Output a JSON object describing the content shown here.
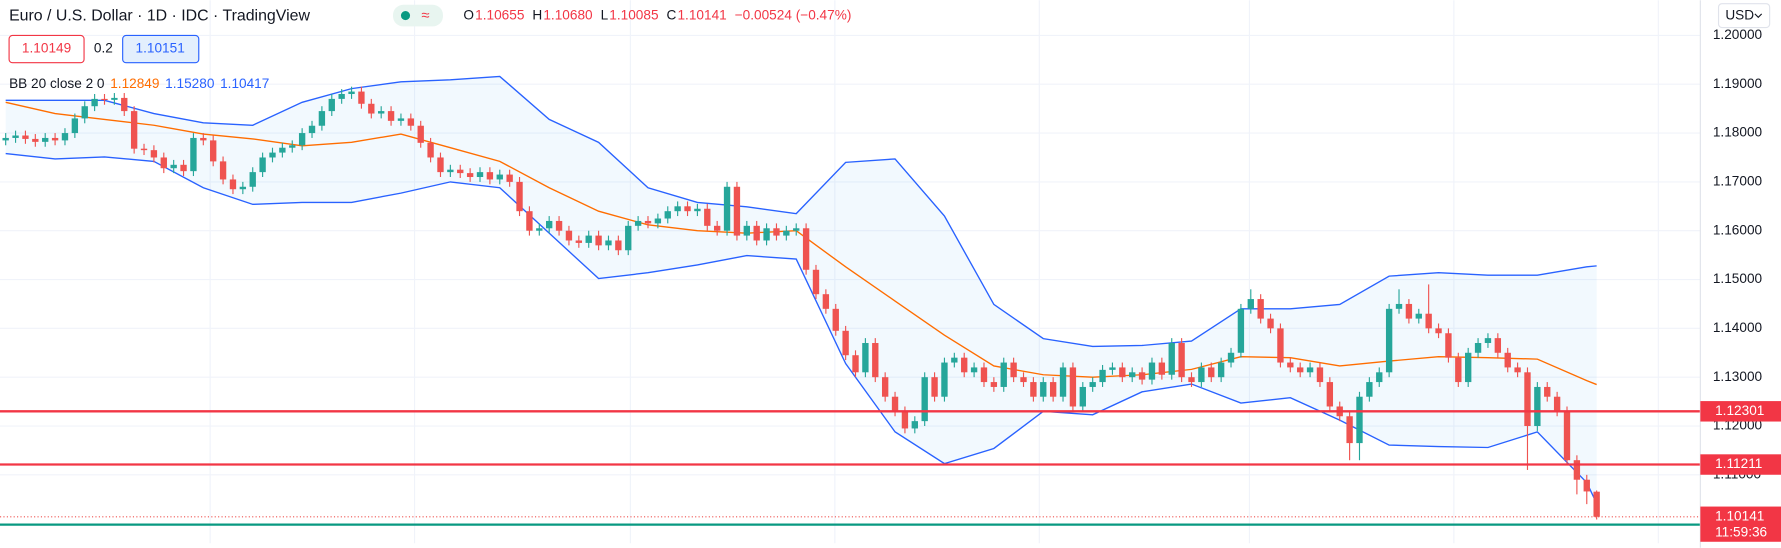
{
  "header": {
    "title": "Euro / U.S. Dollar · 1D · IDC · TradingView",
    "ohlc": [
      {
        "label": "O",
        "value": "1.10655"
      },
      {
        "label": "H",
        "value": "1.10680"
      },
      {
        "label": "L",
        "value": "1.10085"
      },
      {
        "label": "C",
        "value": "1.10141"
      }
    ],
    "change": "−0.00524 (−0.47%)",
    "currency": "USD",
    "bid": "1.10149",
    "spread": "0.2",
    "ask": "1.10151"
  },
  "indicator": {
    "name": "BB 20 close 2 0",
    "countdown": "11:59:36"
  },
  "chart_data": {
    "type": "candlestick",
    "ylim": [
      1.096,
      1.2072
    ],
    "yticks": [
      {
        "value": 1.2,
        "label": "1.20000"
      },
      {
        "value": 1.19,
        "label": "1.19000"
      },
      {
        "value": 1.18,
        "label": "1.18000"
      },
      {
        "value": 1.17,
        "label": "1.17000"
      },
      {
        "value": 1.16,
        "label": "1.16000"
      },
      {
        "value": 1.15,
        "label": "1.15000"
      },
      {
        "value": 1.14,
        "label": "1.14000"
      },
      {
        "value": 1.13,
        "label": "1.13000"
      },
      {
        "value": 1.12,
        "label": "1.12000"
      },
      {
        "value": 1.11,
        "label": "1.11000"
      }
    ],
    "grid": true,
    "up_color": "#26a69a",
    "down_color": "#ef5350",
    "open": [
      1.1785,
      1.179,
      1.1795,
      1.1788,
      1.1782,
      1.179,
      1.1785,
      1.18,
      1.183,
      1.1855,
      1.187,
      1.1868,
      1.1872,
      1.1845,
      1.1768,
      1.1765,
      1.175,
      1.1728,
      1.1735,
      1.1722,
      1.179,
      1.1785,
      1.1742,
      1.1705,
      1.1685,
      1.169,
      1.172,
      1.175,
      1.176,
      1.177,
      1.1775,
      1.18,
      1.1815,
      1.1845,
      1.187,
      1.188,
      1.1885,
      1.186,
      1.184,
      1.1845,
      1.1825,
      1.183,
      1.1815,
      1.178,
      1.175,
      1.172,
      1.1725,
      1.1718,
      1.171,
      1.172,
      1.1705,
      1.1715,
      1.17,
      1.164,
      1.16,
      1.1605,
      1.162,
      1.16,
      1.158,
      1.1575,
      1.159,
      1.157,
      1.158,
      1.156,
      1.161,
      1.162,
      1.1615,
      1.1625,
      1.164,
      1.165,
      1.164,
      1.1645,
      1.161,
      1.16,
      1.169,
      1.159,
      1.161,
      1.158,
      1.1605,
      1.159,
      1.16,
      1.1605,
      1.152,
      1.147,
      1.144,
      1.1395,
      1.1345,
      1.131,
      1.137,
      1.13,
      1.126,
      1.123,
      1.1195,
      1.121,
      1.13,
      1.126,
      1.133,
      1.134,
      1.131,
      1.132,
      1.129,
      1.128,
      1.133,
      1.13,
      1.129,
      1.126,
      1.129,
      1.126,
      1.132,
      1.124,
      1.128,
      1.129,
      1.1315,
      1.132,
      1.13,
      1.131,
      1.1295,
      1.133,
      1.1305,
      1.137,
      1.13,
      1.129,
      1.132,
      1.13,
      1.133,
      1.135,
      1.144,
      1.146,
      1.142,
      1.14,
      1.133,
      1.132,
      1.131,
      1.132,
      1.129,
      1.124,
      1.122,
      1.1165,
      1.126,
      1.129,
      1.131,
      1.144,
      1.145,
      1.142,
      1.143,
      1.14,
      1.139,
      1.134,
      1.129,
      1.135,
      1.137,
      1.138,
      1.135,
      1.132,
      1.131,
      1.12,
      1.128,
      1.126,
      1.123,
      1.113,
      1.109,
      1.10655
    ],
    "high": [
      1.18,
      1.1805,
      1.1805,
      1.1798,
      1.18,
      1.18,
      1.181,
      1.184,
      1.1865,
      1.188,
      1.188,
      1.1882,
      1.1882,
      1.1855,
      1.1778,
      1.1775,
      1.176,
      1.1745,
      1.1745,
      1.18,
      1.18,
      1.1795,
      1.1752,
      1.1715,
      1.17,
      1.173,
      1.176,
      1.177,
      1.178,
      1.1785,
      1.181,
      1.1825,
      1.1855,
      1.188,
      1.189,
      1.1895,
      1.1895,
      1.187,
      1.1855,
      1.1855,
      1.184,
      1.184,
      1.1825,
      1.179,
      1.176,
      1.1735,
      1.1735,
      1.1728,
      1.173,
      1.173,
      1.1725,
      1.1725,
      1.171,
      1.165,
      1.1615,
      1.163,
      1.163,
      1.161,
      1.159,
      1.16,
      1.16,
      1.159,
      1.159,
      1.162,
      1.163,
      1.163,
      1.1635,
      1.165,
      1.166,
      1.166,
      1.1655,
      1.1655,
      1.162,
      1.17,
      1.17,
      1.162,
      1.162,
      1.1615,
      1.1615,
      1.161,
      1.1615,
      1.1615,
      1.153,
      1.148,
      1.145,
      1.1405,
      1.1355,
      1.138,
      1.138,
      1.131,
      1.127,
      1.124,
      1.122,
      1.131,
      1.131,
      1.134,
      1.135,
      1.135,
      1.133,
      1.133,
      1.13,
      1.134,
      1.134,
      1.131,
      1.13,
      1.13,
      1.13,
      1.133,
      1.133,
      1.129,
      1.13,
      1.1325,
      1.133,
      1.133,
      1.132,
      1.132,
      1.134,
      1.134,
      1.138,
      1.138,
      1.131,
      1.133,
      1.133,
      1.134,
      1.136,
      1.145,
      1.148,
      1.147,
      1.143,
      1.141,
      1.134,
      1.133,
      1.133,
      1.133,
      1.13,
      1.125,
      1.123,
      1.127,
      1.13,
      1.132,
      1.145,
      1.148,
      1.146,
      1.144,
      1.149,
      1.141,
      1.14,
      1.135,
      1.136,
      1.138,
      1.139,
      1.139,
      1.136,
      1.133,
      1.132,
      1.129,
      1.129,
      1.127,
      1.124,
      1.114,
      1.11,
      1.1068
    ],
    "low": [
      1.1775,
      1.178,
      1.1778,
      1.1772,
      1.1772,
      1.1775,
      1.1775,
      1.179,
      1.182,
      1.1845,
      1.1858,
      1.1858,
      1.1835,
      1.1758,
      1.1755,
      1.174,
      1.1718,
      1.1718,
      1.1712,
      1.1712,
      1.1775,
      1.1732,
      1.1695,
      1.1675,
      1.1675,
      1.168,
      1.171,
      1.174,
      1.175,
      1.176,
      1.1765,
      1.179,
      1.1805,
      1.1835,
      1.186,
      1.187,
      1.185,
      1.183,
      1.183,
      1.1815,
      1.1815,
      1.1805,
      1.177,
      1.174,
      1.171,
      1.171,
      1.1708,
      1.17,
      1.17,
      1.1695,
      1.1695,
      1.169,
      1.163,
      1.159,
      1.159,
      1.1595,
      1.159,
      1.157,
      1.1565,
      1.1565,
      1.156,
      1.156,
      1.155,
      1.155,
      1.16,
      1.1605,
      1.1605,
      1.1615,
      1.163,
      1.163,
      1.163,
      1.16,
      1.159,
      1.159,
      1.158,
      1.158,
      1.157,
      1.157,
      1.158,
      1.158,
      1.159,
      1.151,
      1.146,
      1.143,
      1.1385,
      1.1335,
      1.13,
      1.13,
      1.129,
      1.125,
      1.122,
      1.1185,
      1.1185,
      1.12,
      1.125,
      1.125,
      1.132,
      1.13,
      1.13,
      1.128,
      1.127,
      1.127,
      1.129,
      1.128,
      1.125,
      1.125,
      1.125,
      1.125,
      1.123,
      1.123,
      1.127,
      1.128,
      1.1305,
      1.129,
      1.129,
      1.1285,
      1.1285,
      1.1295,
      1.1295,
      1.129,
      1.128,
      1.128,
      1.129,
      1.129,
      1.132,
      1.134,
      1.143,
      1.141,
      1.139,
      1.132,
      1.131,
      1.13,
      1.13,
      1.128,
      1.123,
      1.121,
      1.113,
      1.113,
      1.125,
      1.128,
      1.13,
      1.143,
      1.141,
      1.141,
      1.139,
      1.138,
      1.133,
      1.128,
      1.128,
      1.134,
      1.136,
      1.134,
      1.131,
      1.13,
      1.111,
      1.119,
      1.125,
      1.122,
      1.112,
      1.106,
      1.104,
      1.10085
    ],
    "close": [
      1.179,
      1.1795,
      1.1788,
      1.1782,
      1.179,
      1.1785,
      1.18,
      1.183,
      1.1855,
      1.187,
      1.1868,
      1.1872,
      1.1845,
      1.1768,
      1.1765,
      1.175,
      1.1728,
      1.1735,
      1.1722,
      1.179,
      1.1785,
      1.1742,
      1.1705,
      1.1685,
      1.169,
      1.172,
      1.175,
      1.176,
      1.177,
      1.1775,
      1.18,
      1.1815,
      1.1845,
      1.187,
      1.188,
      1.1885,
      1.186,
      1.184,
      1.1845,
      1.1825,
      1.183,
      1.1815,
      1.178,
      1.175,
      1.172,
      1.1725,
      1.1718,
      1.171,
      1.172,
      1.1705,
      1.1715,
      1.17,
      1.164,
      1.16,
      1.1605,
      1.162,
      1.16,
      1.158,
      1.1575,
      1.159,
      1.157,
      1.158,
      1.156,
      1.161,
      1.162,
      1.1615,
      1.1625,
      1.164,
      1.165,
      1.164,
      1.1645,
      1.161,
      1.16,
      1.169,
      1.159,
      1.161,
      1.158,
      1.1605,
      1.159,
      1.16,
      1.1605,
      1.152,
      1.147,
      1.144,
      1.1395,
      1.1345,
      1.131,
      1.137,
      1.13,
      1.126,
      1.123,
      1.1195,
      1.121,
      1.13,
      1.126,
      1.133,
      1.134,
      1.131,
      1.132,
      1.129,
      1.128,
      1.133,
      1.13,
      1.129,
      1.126,
      1.129,
      1.126,
      1.132,
      1.124,
      1.128,
      1.129,
      1.1315,
      1.132,
      1.13,
      1.131,
      1.1295,
      1.133,
      1.1305,
      1.137,
      1.13,
      1.129,
      1.132,
      1.13,
      1.133,
      1.135,
      1.144,
      1.146,
      1.142,
      1.14,
      1.133,
      1.132,
      1.131,
      1.132,
      1.129,
      1.124,
      1.122,
      1.1165,
      1.126,
      1.129,
      1.131,
      1.144,
      1.145,
      1.142,
      1.143,
      1.14,
      1.139,
      1.134,
      1.129,
      1.135,
      1.137,
      1.138,
      1.135,
      1.132,
      1.131,
      1.12,
      1.128,
      1.126,
      1.123,
      1.113,
      1.109,
      1.1066,
      1.10141
    ],
    "bands": {
      "x": [
        0,
        5,
        10,
        15,
        20,
        25,
        30,
        35,
        40,
        45,
        50,
        55,
        60,
        65,
        70,
        75,
        80,
        85,
        90,
        95,
        100,
        105,
        110,
        115,
        120,
        125,
        130,
        135,
        140,
        145,
        150,
        155,
        160,
        161
      ],
      "series": [
        {
          "color": "#ff6d00",
          "value_label": "1.12849",
          "values": [
            1.1863,
            1.184,
            1.1828,
            1.1816,
            1.1798,
            1.1788,
            1.1774,
            1.1781,
            1.1798,
            1.177,
            1.1742,
            1.1688,
            1.164,
            1.1612,
            1.16,
            1.1595,
            1.16,
            1.1526,
            1.1456,
            1.1386,
            1.1323,
            1.1305,
            1.13,
            1.1305,
            1.1316,
            1.1342,
            1.134,
            1.1323,
            1.1333,
            1.1342,
            1.134,
            1.1337,
            1.1293,
            1.12849
          ]
        },
        {
          "color": "#2962ff",
          "value_label": "1.15280",
          "values": [
            1.1867,
            1.1867,
            1.1867,
            1.184,
            1.1821,
            1.1816,
            1.1863,
            1.1891,
            1.1905,
            1.1909,
            1.1916,
            1.1828,
            1.1781,
            1.1688,
            1.1658,
            1.1649,
            1.1635,
            1.174,
            1.1747,
            1.163,
            1.1449,
            1.1379,
            1.1363,
            1.1365,
            1.1374,
            1.144,
            1.144,
            1.1449,
            1.1507,
            1.1514,
            1.1509,
            1.1509,
            1.1526,
            1.1528
          ]
        },
        {
          "color": "#2962ff",
          "value_label": "1.10417",
          "values": [
            1.1758,
            1.1747,
            1.1751,
            1.1742,
            1.1688,
            1.1654,
            1.1658,
            1.1658,
            1.1677,
            1.17,
            1.1688,
            1.1595,
            1.1502,
            1.1514,
            1.153,
            1.1549,
            1.1542,
            1.1328,
            1.1188,
            1.1123,
            1.1154,
            1.123,
            1.1223,
            1.127,
            1.1286,
            1.1247,
            1.1258,
            1.1212,
            1.1161,
            1.1158,
            1.1156,
            1.1188,
            1.1084,
            1.10417
          ]
        }
      ]
    },
    "hlines": [
      {
        "value": 1.12301,
        "color": "#f23645"
      },
      {
        "value": 1.11211,
        "color": "#f23645"
      },
      {
        "value": 1.0998,
        "color": "#089981"
      }
    ]
  }
}
